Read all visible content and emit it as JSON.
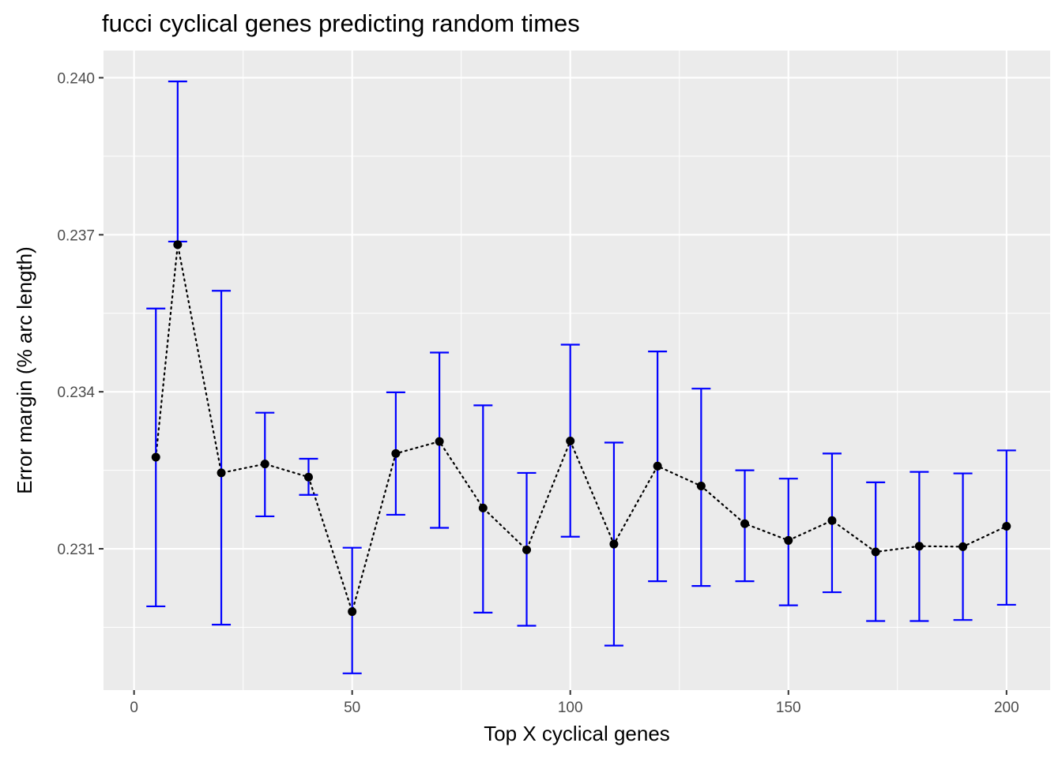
{
  "chart_data": {
    "type": "scatter",
    "title": "fucci cyclical genes predicting random times",
    "xlabel": "Top X cyclical genes",
    "ylabel": "Error margin (% arc length)",
    "xlim": [
      -7,
      210
    ],
    "ylim": [
      0.2283,
      0.24052
    ],
    "x_ticks": [
      0,
      50,
      100,
      150,
      200
    ],
    "y_ticks": [
      0.231,
      0.234,
      0.237,
      0.24
    ],
    "x_tick_labels": [
      "0",
      "50",
      "100",
      "150",
      "200"
    ],
    "y_tick_labels": [
      "0.231",
      "0.234",
      "0.237",
      "0.240"
    ],
    "grid": true,
    "series": [
      {
        "x": [
          5,
          10,
          20,
          30,
          40,
          50,
          60,
          70,
          80,
          90,
          100,
          110,
          120,
          130,
          140,
          150,
          160,
          170,
          180,
          190,
          200
        ],
        "y": [
          0.23275,
          0.23681,
          0.23245,
          0.23262,
          0.23237,
          0.2298,
          0.23282,
          0.23305,
          0.23178,
          0.23098,
          0.23306,
          0.23109,
          0.23258,
          0.2322,
          0.23148,
          0.23116,
          0.23154,
          0.23094,
          0.23105,
          0.23104,
          0.23143
        ],
        "ymin": [
          0.2299,
          0.23687,
          0.22955,
          0.23162,
          0.23203,
          0.22862,
          0.23165,
          0.2314,
          0.22978,
          0.22953,
          0.23123,
          0.22915,
          0.23038,
          0.23029,
          0.23038,
          0.22992,
          0.23017,
          0.22962,
          0.22962,
          0.22964,
          0.22993
        ],
        "ymax": [
          0.23559,
          0.23993,
          0.23593,
          0.2336,
          0.23272,
          0.23102,
          0.23399,
          0.23475,
          0.23374,
          0.23245,
          0.2349,
          0.23303,
          0.23477,
          0.23406,
          0.2325,
          0.23234,
          0.23282,
          0.23227,
          0.23247,
          0.23244,
          0.23288
        ]
      }
    ],
    "colors": {
      "panel": "#EBEBEB",
      "grid": "#FFFFFF",
      "point": "#000000",
      "errorbar": "#0000FF",
      "line": "#000000"
    }
  }
}
